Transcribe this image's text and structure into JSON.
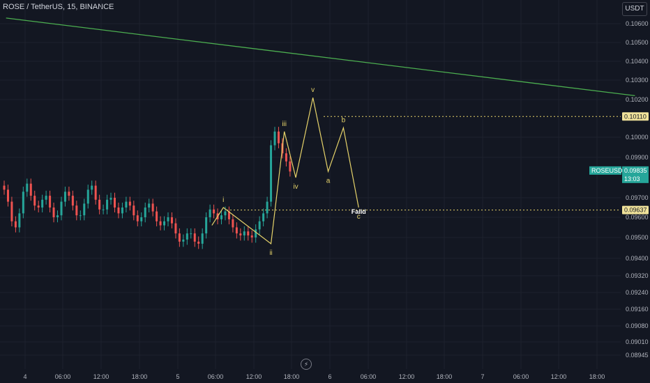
{
  "header": {
    "symbol_title": "ROSE / TetherUS, 15, BINANCE",
    "currency": "USDT"
  },
  "icons": {
    "replay": "lightning-icon"
  },
  "colors": {
    "background": "#131722",
    "up": "#26a69a",
    "down": "#ef5350",
    "wave": "#e6d36a",
    "trendline": "#4caf50",
    "grid": "#1e222d"
  },
  "chart_data": {
    "type": "candlestick",
    "y_ticks": [
      "0.10600",
      "0.10500",
      "0.10400",
      "0.10300",
      "0.10200",
      "0.10000",
      "0.09900",
      "0.09700",
      "0.09600",
      "0.09500",
      "0.09400",
      "0.09320",
      "0.09240",
      "0.09160",
      "0.09080",
      "0.09010",
      "0.08945"
    ],
    "x_ticks": [
      "4",
      "06:00",
      "12:00",
      "18:00",
      "5",
      "06:00",
      "12:00",
      "18:00",
      "6",
      "06:00",
      "12:00",
      "18:00",
      "7",
      "06:00",
      "12:00",
      "18:00"
    ],
    "candles": [
      [
        0,
        0.0974
      ],
      [
        0.1,
        0.0968
      ],
      [
        0.2,
        0.0958
      ],
      [
        0.3,
        0.0955
      ],
      [
        0.4,
        0.0962
      ],
      [
        0.5,
        0.0973
      ],
      [
        0.6,
        0.0977
      ],
      [
        0.7,
        0.0971
      ],
      [
        0.8,
        0.0966
      ],
      [
        0.9,
        0.0965
      ],
      [
        1.0,
        0.0969
      ],
      [
        1.1,
        0.0971
      ],
      [
        1.2,
        0.0965
      ],
      [
        1.3,
        0.096
      ],
      [
        1.4,
        0.0961
      ],
      [
        1.5,
        0.0968
      ],
      [
        1.6,
        0.0973
      ],
      [
        1.7,
        0.0971
      ],
      [
        1.8,
        0.0966
      ],
      [
        1.9,
        0.0961
      ],
      [
        2.0,
        0.0961
      ],
      [
        2.1,
        0.0967
      ],
      [
        2.2,
        0.0974
      ],
      [
        2.3,
        0.0976
      ],
      [
        2.4,
        0.0969
      ],
      [
        2.5,
        0.0964
      ],
      [
        2.6,
        0.0964
      ],
      [
        2.7,
        0.0969
      ],
      [
        2.8,
        0.097
      ],
      [
        2.9,
        0.0965
      ],
      [
        3.0,
        0.0962
      ],
      [
        3.1,
        0.0965
      ],
      [
        3.2,
        0.0968
      ],
      [
        3.3,
        0.0966
      ],
      [
        3.4,
        0.0961
      ],
      [
        3.5,
        0.0958
      ],
      [
        3.6,
        0.096
      ],
      [
        3.7,
        0.0965
      ],
      [
        3.8,
        0.0967
      ],
      [
        3.9,
        0.0963
      ],
      [
        4.0,
        0.0958
      ],
      [
        4.1,
        0.0956
      ],
      [
        4.2,
        0.0958
      ],
      [
        4.3,
        0.096
      ],
      [
        4.4,
        0.0957
      ],
      [
        4.5,
        0.0952
      ],
      [
        4.6,
        0.0948
      ],
      [
        4.7,
        0.0949
      ],
      [
        4.8,
        0.0952
      ],
      [
        4.9,
        0.0952
      ],
      [
        5.0,
        0.0948
      ],
      [
        5.1,
        0.0947
      ],
      [
        5.2,
        0.0952
      ],
      [
        5.3,
        0.096
      ],
      [
        5.4,
        0.0964
      ],
      [
        5.5,
        0.0962
      ],
      [
        5.6,
        0.0959
      ],
      [
        5.7,
        0.0961
      ],
      [
        5.8,
        0.0963
      ],
      [
        5.9,
        0.0959
      ],
      [
        6.0,
        0.0955
      ],
      [
        6.1,
        0.0952
      ],
      [
        6.2,
        0.0951
      ],
      [
        6.3,
        0.0953
      ],
      [
        6.4,
        0.0951
      ],
      [
        6.5,
        0.095
      ],
      [
        6.6,
        0.0954
      ],
      [
        6.7,
        0.0958
      ],
      [
        6.8,
        0.0962
      ],
      [
        6.9,
        0.0968
      ],
      [
        7.0,
        0.0996
      ],
      [
        7.1,
        0.1003
      ],
      [
        7.2,
        0.0997
      ],
      [
        7.3,
        0.0992
      ],
      [
        7.4,
        0.0988
      ],
      [
        7.5,
        0.0983
      ]
    ],
    "candle_y_range": [
      0.094,
      0.1005
    ],
    "last_price": {
      "label": "ROSEUSDT",
      "value": "0.09835",
      "countdown": "13:03"
    },
    "levels": [
      {
        "value": "0.10110",
        "y": 0.1011
      },
      {
        "value": "0.09637",
        "y": 0.09637
      }
    ],
    "elliott_wave": {
      "labels": [
        "i",
        "ii",
        "iii",
        "iv",
        "v",
        "a",
        "b",
        "c"
      ],
      "points": [
        [
          "x",
          5.75,
          0.0965
        ],
        [
          "x",
          7.0,
          0.0947
        ],
        [
          "x",
          7.35,
          0.1003
        ],
        [
          "x",
          7.65,
          0.098
        ],
        [
          "x",
          8.1,
          0.1021
        ],
        [
          "x",
          8.5,
          0.0983
        ],
        [
          "x",
          8.9,
          0.1005
        ],
        [
          "x",
          9.3,
          0.0965
        ]
      ]
    },
    "annotation": "Faild",
    "trendline": [
      [
        -0.5,
        0.1063
      ],
      [
        16.0,
        0.1022
      ]
    ]
  }
}
